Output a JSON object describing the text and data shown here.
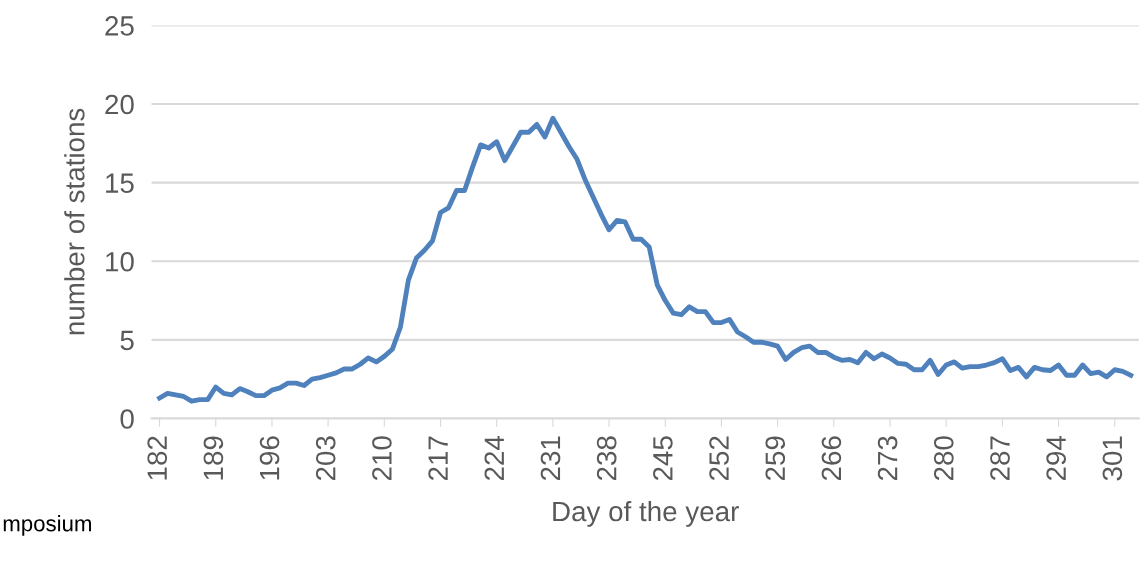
{
  "chart_data": {
    "type": "line",
    "xlabel": "Day of the year",
    "ylabel": "number of stations",
    "x": [
      182,
      183,
      184,
      185,
      186,
      187,
      188,
      189,
      190,
      191,
      192,
      193,
      194,
      195,
      196,
      197,
      198,
      199,
      200,
      201,
      202,
      203,
      204,
      205,
      206,
      207,
      208,
      209,
      210,
      211,
      212,
      213,
      214,
      215,
      216,
      217,
      218,
      219,
      220,
      221,
      222,
      223,
      224,
      225,
      226,
      227,
      228,
      229,
      230,
      231,
      232,
      233,
      234,
      235,
      236,
      237,
      238,
      239,
      240,
      241,
      242,
      243,
      244,
      245,
      246,
      247,
      248,
      249,
      250,
      251,
      252,
      253,
      254,
      255,
      256,
      257,
      258,
      259,
      260,
      261,
      262,
      263,
      264,
      265,
      266,
      267,
      268,
      269,
      270,
      271,
      272,
      273,
      274,
      275,
      276,
      277,
      278,
      279,
      280,
      281,
      282,
      283,
      284,
      285,
      286,
      287,
      288,
      289,
      290,
      291,
      292,
      293,
      294,
      295,
      296,
      297,
      298,
      299,
      300,
      301,
      302,
      303
    ],
    "series": [
      {
        "color": "#4f81bd",
        "values": [
          1.3,
          1.6,
          1.5,
          1.4,
          1.1,
          1.2,
          1.2,
          2.0,
          1.6,
          1.5,
          1.9,
          1.7,
          1.45,
          1.45,
          1.8,
          1.95,
          2.25,
          2.25,
          2.1,
          2.5,
          2.6,
          2.75,
          2.9,
          3.15,
          3.15,
          3.45,
          3.85,
          3.6,
          3.95,
          4.4,
          5.8,
          8.8,
          10.2,
          10.7,
          11.3,
          13.1,
          13.4,
          14.5,
          14.5,
          16.0,
          17.4,
          17.2,
          17.6,
          16.4,
          17.3,
          18.2,
          18.2,
          18.7,
          17.9,
          19.1,
          18.2,
          17.3,
          16.5,
          15.2,
          14.1,
          13.0,
          12.0,
          12.6,
          12.5,
          11.4,
          11.4,
          10.9,
          8.5,
          7.5,
          6.7,
          6.6,
          7.1,
          6.8,
          6.8,
          6.1,
          6.1,
          6.3,
          5.5,
          5.2,
          4.85,
          4.85,
          4.75,
          4.6,
          3.75,
          4.2,
          4.5,
          4.6,
          4.2,
          4.2,
          3.9,
          3.7,
          3.75,
          3.55,
          4.2,
          3.8,
          4.1,
          3.85,
          3.5,
          3.45,
          3.1,
          3.1,
          3.7,
          2.8,
          3.4,
          3.6,
          3.2,
          3.3,
          3.3,
          3.4,
          3.55,
          3.8,
          3.05,
          3.25,
          2.65,
          3.25,
          3.1,
          3.05,
          3.4,
          2.75,
          2.75,
          3.4,
          2.85,
          2.95,
          2.65,
          3.1,
          3.0,
          2.75
        ]
      }
    ],
    "xlim": [
      181,
      304
    ],
    "xticks": [
      182,
      189,
      196,
      203,
      210,
      217,
      224,
      231,
      238,
      245,
      252,
      259,
      266,
      273,
      280,
      287,
      294,
      301
    ],
    "ylim": [
      0,
      25
    ],
    "yticks": [
      0,
      5,
      10,
      15,
      20,
      25
    ],
    "grid": "y",
    "marker": "none",
    "line_style": "solid",
    "annotations": [
      "mposium"
    ]
  }
}
